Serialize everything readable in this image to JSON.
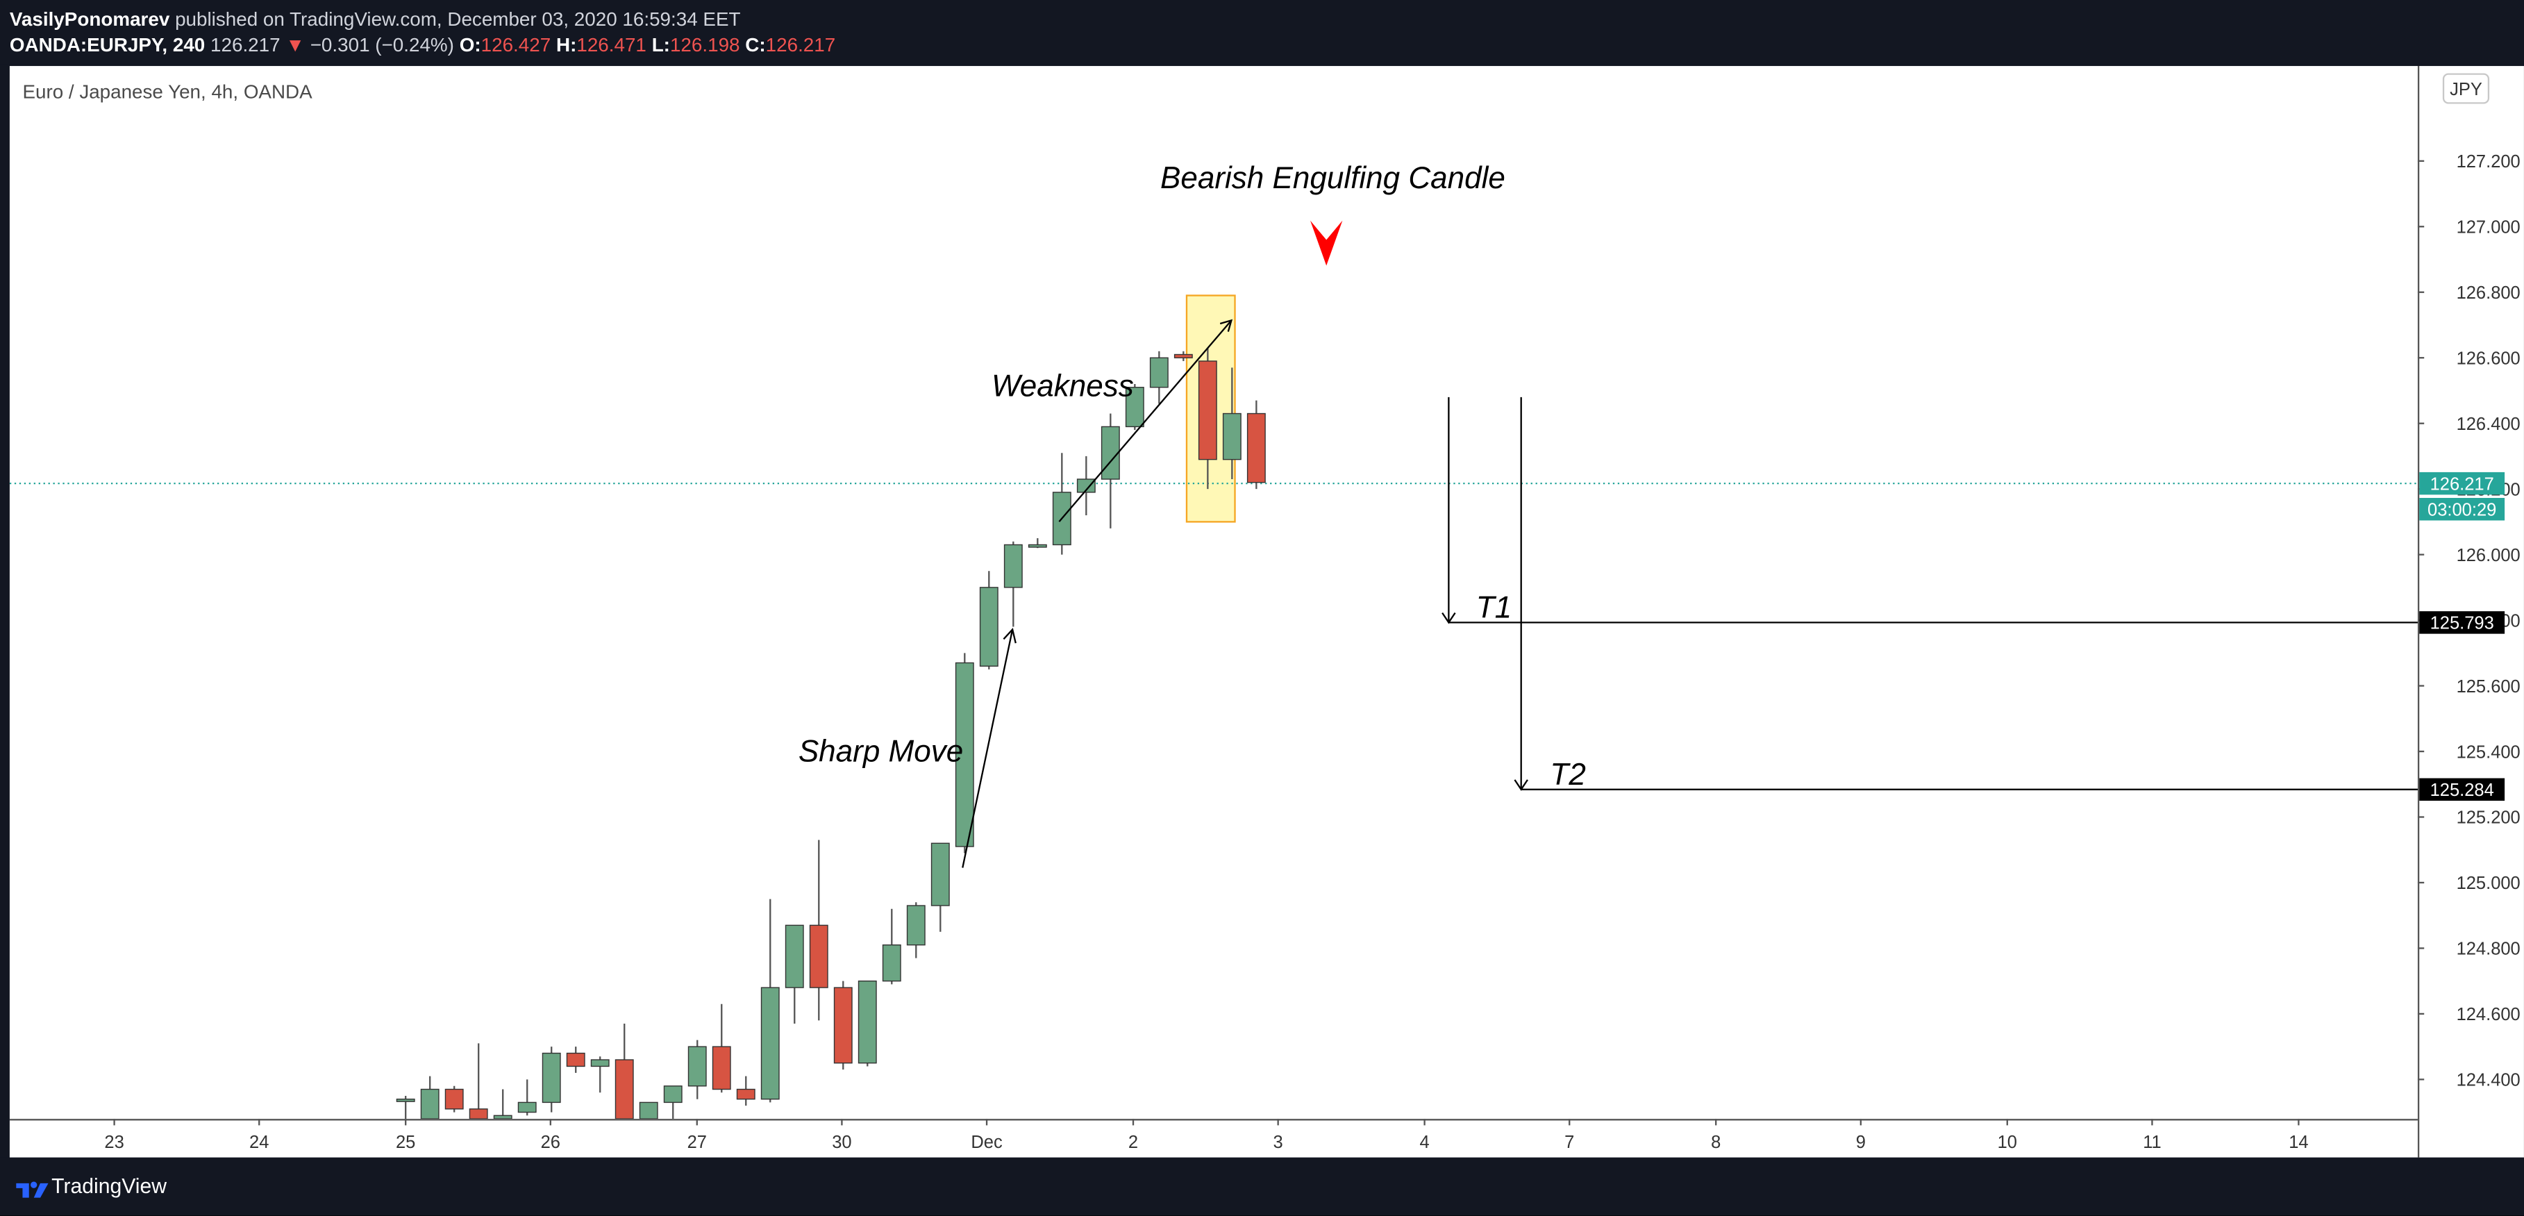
{
  "header": {
    "author": "VasilyPonomarev",
    "published": "published on TradingView.com, December 03, 2020 16:59:34 EET",
    "symbol": "OANDA:EURJPY, 240",
    "last": "126.217",
    "change_arrow": "▼",
    "change": "−0.301 (−0.24%)",
    "o_label": "O:",
    "o_value": "126.427",
    "h_label": "H:",
    "h_value": "126.471",
    "l_label": "L:",
    "l_value": "126.198",
    "c_label": "C:",
    "c_value": "126.217"
  },
  "footer": {
    "brand": "TradingView",
    "logo_icon": "tradingview-logo-icon"
  },
  "colors": {
    "up": "#6ba583",
    "down": "#d75442",
    "highlight": "#fff59d",
    "price_line": "#26a69a",
    "arrow_marker": "#ff0000"
  },
  "chart_data": {
    "type": "candlestick",
    "title": "Euro / Japanese Yen, 4h, OANDA",
    "currency_badge": "JPY",
    "y_axis": {
      "ticks": [
        "127.200",
        "127.000",
        "126.800",
        "126.600",
        "126.400",
        "126.200",
        "126.000",
        "125.800",
        "125.600",
        "125.400",
        "125.200",
        "125.000",
        "124.800",
        "124.600",
        "124.400"
      ],
      "ylim": [
        124.28,
        127.5
      ]
    },
    "x_axis": {
      "ticks": [
        "23",
        "24",
        "25",
        "26",
        "27",
        "30",
        "Dec",
        "2",
        "3",
        "4",
        "7",
        "8",
        "9",
        "10",
        "11",
        "14"
      ]
    },
    "candles": [
      {
        "o": 124.34,
        "h": 124.35,
        "l": 124.28,
        "c": 124.34
      },
      {
        "o": 124.28,
        "h": 124.41,
        "l": 124.28,
        "c": 124.37
      },
      {
        "o": 124.37,
        "h": 124.38,
        "l": 124.3,
        "c": 124.31
      },
      {
        "o": 124.31,
        "h": 124.51,
        "l": 124.28,
        "c": 124.28
      },
      {
        "o": 124.28,
        "h": 124.37,
        "l": 124.28,
        "c": 124.29
      },
      {
        "o": 124.3,
        "h": 124.4,
        "l": 124.29,
        "c": 124.33
      },
      {
        "o": 124.33,
        "h": 124.5,
        "l": 124.3,
        "c": 124.48
      },
      {
        "o": 124.48,
        "h": 124.5,
        "l": 124.42,
        "c": 124.44
      },
      {
        "o": 124.44,
        "h": 124.47,
        "l": 124.36,
        "c": 124.46
      },
      {
        "o": 124.46,
        "h": 124.57,
        "l": 124.28,
        "c": 124.28
      },
      {
        "o": 124.28,
        "h": 124.33,
        "l": 124.28,
        "c": 124.33
      },
      {
        "o": 124.33,
        "h": 124.38,
        "l": 124.28,
        "c": 124.38
      },
      {
        "o": 124.38,
        "h": 124.52,
        "l": 124.34,
        "c": 124.5
      },
      {
        "o": 124.5,
        "h": 124.63,
        "l": 124.36,
        "c": 124.37
      },
      {
        "o": 124.37,
        "h": 124.41,
        "l": 124.32,
        "c": 124.34
      },
      {
        "o": 124.34,
        "h": 124.95,
        "l": 124.33,
        "c": 124.68
      },
      {
        "o": 124.68,
        "h": 124.87,
        "l": 124.57,
        "c": 124.87
      },
      {
        "o": 124.87,
        "h": 125.13,
        "l": 124.58,
        "c": 124.68
      },
      {
        "o": 124.68,
        "h": 124.7,
        "l": 124.43,
        "c": 124.45
      },
      {
        "o": 124.45,
        "h": 124.7,
        "l": 124.44,
        "c": 124.7
      },
      {
        "o": 124.7,
        "h": 124.92,
        "l": 124.69,
        "c": 124.81
      },
      {
        "o": 124.81,
        "h": 124.94,
        "l": 124.77,
        "c": 124.93
      },
      {
        "o": 124.93,
        "h": 125.12,
        "l": 124.85,
        "c": 125.12
      },
      {
        "o": 125.11,
        "h": 125.7,
        "l": 125.09,
        "c": 125.67
      },
      {
        "o": 125.66,
        "h": 125.95,
        "l": 125.65,
        "c": 125.9
      },
      {
        "o": 125.9,
        "h": 126.04,
        "l": 125.78,
        "c": 126.03
      },
      {
        "o": 126.03,
        "h": 126.05,
        "l": 126.02,
        "c": 126.03
      },
      {
        "o": 126.03,
        "h": 126.31,
        "l": 126.0,
        "c": 126.19
      },
      {
        "o": 126.19,
        "h": 126.3,
        "l": 126.12,
        "c": 126.23
      },
      {
        "o": 126.23,
        "h": 126.43,
        "l": 126.08,
        "c": 126.39
      },
      {
        "o": 126.39,
        "h": 126.52,
        "l": 126.38,
        "c": 126.51
      },
      {
        "o": 126.51,
        "h": 126.62,
        "l": 126.46,
        "c": 126.6
      },
      {
        "o": 126.61,
        "h": 126.62,
        "l": 126.59,
        "c": 126.6
      },
      {
        "o": 126.59,
        "h": 126.63,
        "l": 126.2,
        "c": 126.29
      },
      {
        "o": 126.29,
        "h": 126.57,
        "l": 126.23,
        "c": 126.43
      },
      {
        "o": 126.43,
        "h": 126.47,
        "l": 126.2,
        "c": 126.22
      }
    ],
    "current_price": {
      "value": 126.217,
      "label": "126.217",
      "countdown": "03:00:29"
    },
    "targets": [
      {
        "name": "T1",
        "value": 125.793,
        "label": "125.793"
      },
      {
        "name": "T2",
        "value": 125.284,
        "label": "125.284"
      }
    ],
    "annotations": {
      "bearish": "Bearish Engulfing Candle",
      "weakness": "Weakness",
      "sharp_move": "Sharp Move"
    },
    "grid": false
  }
}
